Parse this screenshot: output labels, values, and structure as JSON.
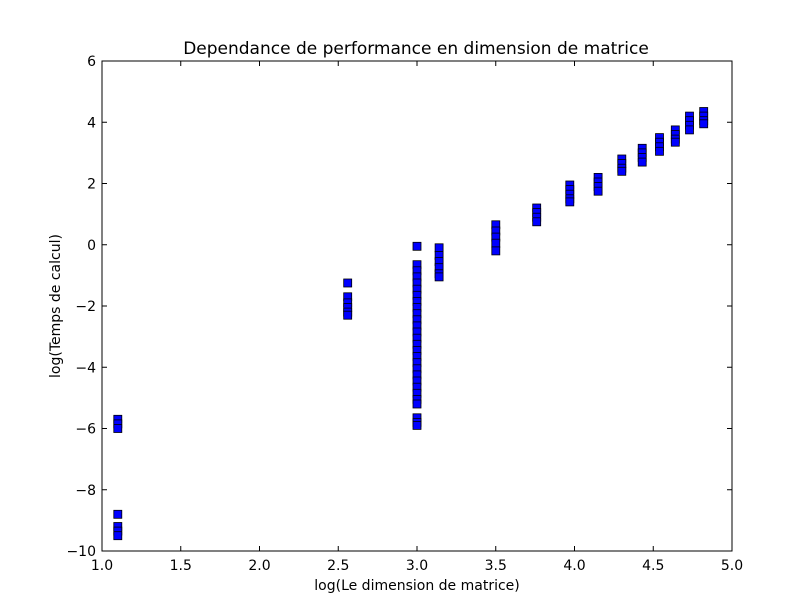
{
  "chart_data": {
    "type": "scatter",
    "title": "Dependance de performance en dimension de matrice",
    "xlabel": "log(Le dimension de matrice)",
    "ylabel": "log(Temps de calcul)",
    "xlim": [
      1.0,
      5.0
    ],
    "ylim": [
      -10,
      6
    ],
    "xticks": [
      1.0,
      1.5,
      2.0,
      2.5,
      3.0,
      3.5,
      4.0,
      4.5,
      5.0
    ],
    "xtick_labels": [
      "1.0",
      "1.5",
      "2.0",
      "2.5",
      "3.0",
      "3.5",
      "4.0",
      "4.5",
      "5.0"
    ],
    "yticks": [
      -10,
      -8,
      -6,
      -4,
      -2,
      0,
      2,
      4,
      6
    ],
    "ytick_labels": [
      "−10",
      "−8",
      "−6",
      "−4",
      "−2",
      "0",
      "2",
      "4",
      "6"
    ],
    "grid": false,
    "marker": "square",
    "marker_color": "#0000ff",
    "marker_edge_color": "#000000",
    "points": [
      {
        "x": 1.1,
        "y": -5.7
      },
      {
        "x": 1.1,
        "y": -5.85
      },
      {
        "x": 1.1,
        "y": -6.0
      },
      {
        "x": 1.1,
        "y": -8.8
      },
      {
        "x": 1.1,
        "y": -9.2
      },
      {
        "x": 1.1,
        "y": -9.35
      },
      {
        "x": 1.1,
        "y": -9.5
      },
      {
        "x": 2.56,
        "y": -1.25
      },
      {
        "x": 2.56,
        "y": -1.7
      },
      {
        "x": 2.56,
        "y": -1.9
      },
      {
        "x": 2.56,
        "y": -2.05
      },
      {
        "x": 2.56,
        "y": -2.2
      },
      {
        "x": 2.56,
        "y": -2.3
      },
      {
        "x": 3.0,
        "y": -0.05
      },
      {
        "x": 3.0,
        "y": -0.65
      },
      {
        "x": 3.0,
        "y": -0.85
      },
      {
        "x": 3.0,
        "y": -1.05
      },
      {
        "x": 3.0,
        "y": -1.25
      },
      {
        "x": 3.0,
        "y": -1.45
      },
      {
        "x": 3.0,
        "y": -1.65
      },
      {
        "x": 3.0,
        "y": -1.85
      },
      {
        "x": 3.0,
        "y": -2.05
      },
      {
        "x": 3.0,
        "y": -2.25
      },
      {
        "x": 3.0,
        "y": -2.45
      },
      {
        "x": 3.0,
        "y": -2.65
      },
      {
        "x": 3.0,
        "y": -2.85
      },
      {
        "x": 3.0,
        "y": -3.05
      },
      {
        "x": 3.0,
        "y": -3.25
      },
      {
        "x": 3.0,
        "y": -3.45
      },
      {
        "x": 3.0,
        "y": -3.65
      },
      {
        "x": 3.0,
        "y": -3.85
      },
      {
        "x": 3.0,
        "y": -4.05
      },
      {
        "x": 3.0,
        "y": -4.25
      },
      {
        "x": 3.0,
        "y": -4.45
      },
      {
        "x": 3.0,
        "y": -4.65
      },
      {
        "x": 3.0,
        "y": -4.85
      },
      {
        "x": 3.0,
        "y": -5.05
      },
      {
        "x": 3.0,
        "y": -5.2
      },
      {
        "x": 3.0,
        "y": -5.65
      },
      {
        "x": 3.0,
        "y": -5.8
      },
      {
        "x": 3.0,
        "y": -5.9
      },
      {
        "x": 3.14,
        "y": -0.1
      },
      {
        "x": 3.14,
        "y": -0.35
      },
      {
        "x": 3.14,
        "y": -0.55
      },
      {
        "x": 3.14,
        "y": -0.75
      },
      {
        "x": 3.14,
        "y": -0.95
      },
      {
        "x": 3.14,
        "y": -1.05
      },
      {
        "x": 3.5,
        "y": 0.65
      },
      {
        "x": 3.5,
        "y": 0.45
      },
      {
        "x": 3.5,
        "y": 0.25
      },
      {
        "x": 3.5,
        "y": 0.05
      },
      {
        "x": 3.5,
        "y": -0.2
      },
      {
        "x": 3.76,
        "y": 1.2
      },
      {
        "x": 3.76,
        "y": 1.05
      },
      {
        "x": 3.76,
        "y": 0.9
      },
      {
        "x": 3.76,
        "y": 0.75
      },
      {
        "x": 3.97,
        "y": 1.95
      },
      {
        "x": 3.97,
        "y": 1.8
      },
      {
        "x": 3.97,
        "y": 1.65
      },
      {
        "x": 3.97,
        "y": 1.5
      },
      {
        "x": 3.97,
        "y": 1.4
      },
      {
        "x": 4.15,
        "y": 2.2
      },
      {
        "x": 4.15,
        "y": 2.05
      },
      {
        "x": 4.15,
        "y": 1.9
      },
      {
        "x": 4.15,
        "y": 1.75
      },
      {
        "x": 4.3,
        "y": 2.8
      },
      {
        "x": 4.3,
        "y": 2.65
      },
      {
        "x": 4.3,
        "y": 2.5
      },
      {
        "x": 4.3,
        "y": 2.4
      },
      {
        "x": 4.43,
        "y": 3.15
      },
      {
        "x": 4.43,
        "y": 3.0
      },
      {
        "x": 4.43,
        "y": 2.85
      },
      {
        "x": 4.43,
        "y": 2.7
      },
      {
        "x": 4.54,
        "y": 3.5
      },
      {
        "x": 4.54,
        "y": 3.35
      },
      {
        "x": 4.54,
        "y": 3.2
      },
      {
        "x": 4.54,
        "y": 3.05
      },
      {
        "x": 4.64,
        "y": 3.75
      },
      {
        "x": 4.64,
        "y": 3.6
      },
      {
        "x": 4.64,
        "y": 3.45
      },
      {
        "x": 4.64,
        "y": 3.35
      },
      {
        "x": 4.73,
        "y": 4.2
      },
      {
        "x": 4.73,
        "y": 4.05
      },
      {
        "x": 4.73,
        "y": 3.9
      },
      {
        "x": 4.73,
        "y": 3.75
      },
      {
        "x": 4.82,
        "y": 4.35
      },
      {
        "x": 4.82,
        "y": 4.2
      },
      {
        "x": 4.82,
        "y": 4.05
      },
      {
        "x": 4.82,
        "y": 3.95
      }
    ]
  }
}
